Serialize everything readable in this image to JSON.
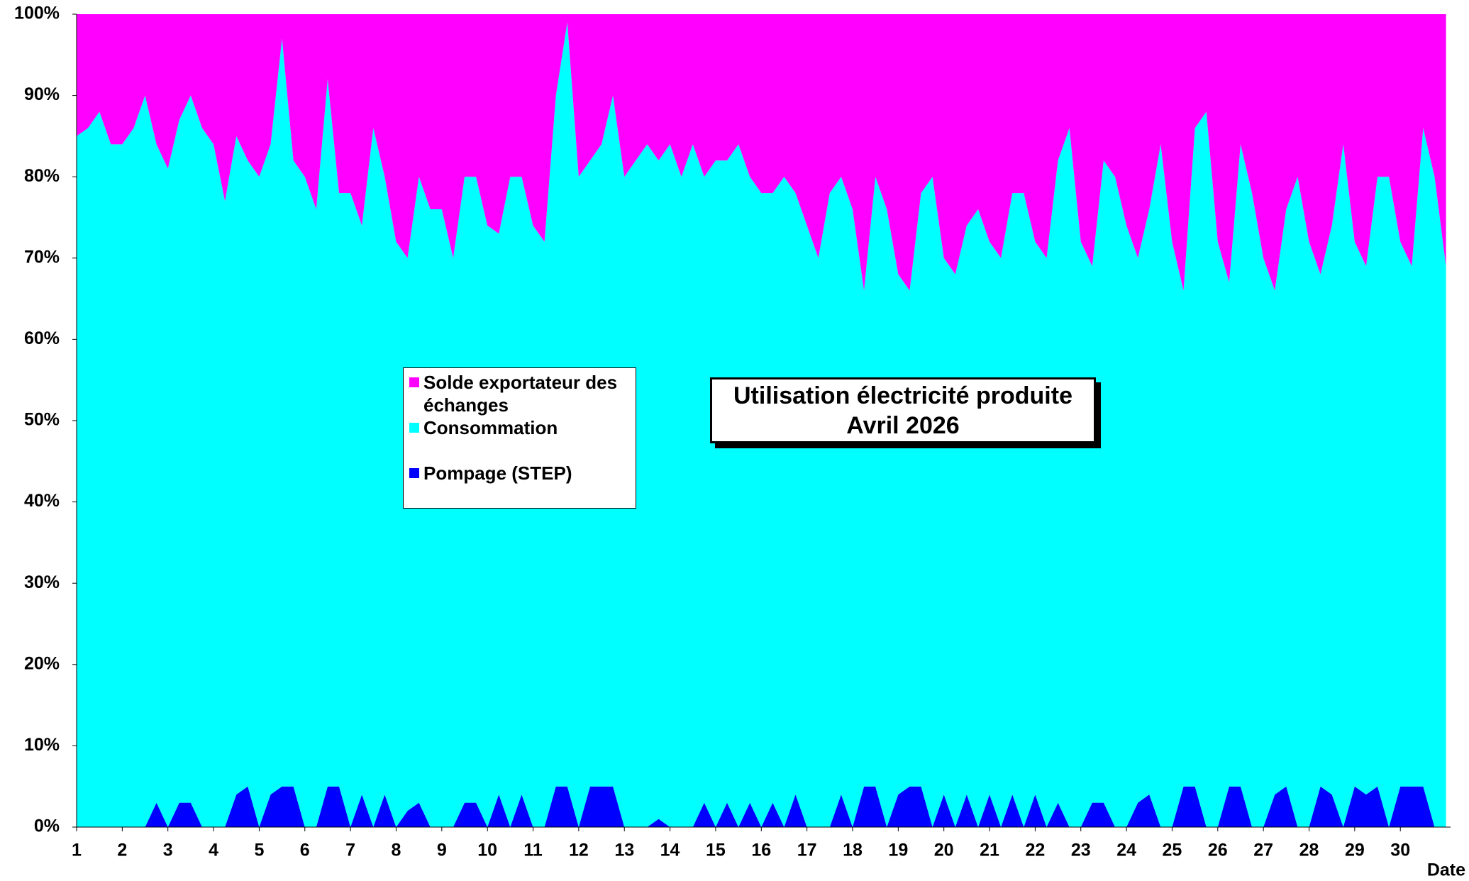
{
  "chart_data": {
    "type": "stacked-area",
    "title": "Utilisation électricité produite",
    "subtitle": "Avril 2026",
    "xlabel": "Date",
    "x": [
      1,
      1.25,
      1.5,
      1.75,
      2,
      2.25,
      2.5,
      2.75,
      3,
      3.25,
      3.5,
      3.75,
      4,
      4.25,
      4.5,
      4.75,
      5,
      5.25,
      5.5,
      5.75,
      6,
      6.25,
      6.5,
      6.75,
      7,
      7.25,
      7.5,
      7.75,
      8,
      8.25,
      8.5,
      8.75,
      9,
      9.25,
      9.5,
      9.75,
      10,
      10.25,
      10.5,
      10.75,
      11,
      11.25,
      11.5,
      11.75,
      12,
      12.25,
      12.5,
      12.75,
      13,
      13.25,
      13.5,
      13.75,
      14,
      14.25,
      14.5,
      14.75,
      15,
      15.25,
      15.5,
      15.75,
      16,
      16.25,
      16.5,
      16.75,
      17,
      17.25,
      17.5,
      17.75,
      18,
      18.25,
      18.5,
      18.75,
      19,
      19.25,
      19.5,
      19.75,
      20,
      20.25,
      20.5,
      20.75,
      21,
      21.25,
      21.5,
      21.75,
      22,
      22.25,
      22.5,
      22.75,
      23,
      23.25,
      23.5,
      23.75,
      24,
      24.25,
      24.5,
      24.75,
      25,
      25.25,
      25.5,
      25.75,
      26,
      26.25,
      26.5,
      26.75,
      27,
      27.25,
      27.5,
      27.75,
      28,
      28.25,
      28.5,
      28.75,
      29,
      29.25,
      29.5,
      29.75,
      30,
      30.25,
      30.5,
      30.75,
      31
    ],
    "series": [
      {
        "name": "Solde exportateur des échanges",
        "color": "#ff00ff",
        "values": [
          15,
          14,
          12,
          16,
          16,
          14,
          10,
          16,
          19,
          13,
          10,
          14,
          16,
          23,
          15,
          18,
          20,
          16,
          3,
          18,
          20,
          24,
          8,
          22,
          22,
          26,
          14,
          20,
          28,
          30,
          20,
          24,
          24,
          30,
          20,
          20,
          26,
          27,
          20,
          20,
          26,
          28,
          10,
          1,
          20,
          18,
          16,
          10,
          20,
          18,
          16,
          18,
          16,
          20,
          16,
          20,
          18,
          18,
          16,
          20,
          22,
          22,
          20,
          22,
          26,
          30,
          22,
          20,
          24,
          34,
          20,
          24,
          32,
          34,
          22,
          20,
          30,
          32,
          26,
          24,
          28,
          30,
          22,
          22,
          28,
          30,
          18,
          14,
          28,
          31,
          18,
          20,
          26,
          30,
          24,
          16,
          28,
          34,
          14,
          12,
          28,
          33,
          16,
          22,
          30,
          34,
          24,
          20,
          28,
          32,
          26,
          16,
          28,
          31,
          20,
          20,
          28,
          31,
          14,
          20,
          31
        ]
      },
      {
        "name": "Consommation",
        "color": "#00ffff",
        "values": [
          85,
          86,
          88,
          84,
          84,
          86,
          90,
          81,
          81,
          84,
          87,
          86,
          84,
          77,
          81,
          77,
          80,
          80,
          92,
          77,
          80,
          76,
          87,
          73,
          78,
          70,
          86,
          76,
          72,
          68,
          77,
          76,
          76,
          70,
          77,
          77,
          74,
          69,
          80,
          76,
          74,
          72,
          85,
          94,
          80,
          77,
          79,
          85,
          80,
          82,
          84,
          81,
          84,
          80,
          84,
          77,
          82,
          79,
          84,
          77,
          78,
          75,
          80,
          74,
          74,
          70,
          78,
          76,
          76,
          61,
          75,
          76,
          64,
          61,
          73,
          80,
          66,
          68,
          70,
          76,
          68,
          70,
          74,
          78,
          68,
          70,
          79,
          86,
          72,
          66,
          79,
          80,
          74,
          67,
          72,
          84,
          72,
          61,
          81,
          88,
          72,
          62,
          79,
          78,
          70,
          62,
          71,
          80,
          72,
          63,
          70,
          84,
          67,
          65,
          75,
          80,
          67,
          64,
          81,
          80,
          69
        ]
      },
      {
        "name": "Pompage (STEP)",
        "color": "#0000ff",
        "values": [
          0,
          0,
          0,
          0,
          0,
          0,
          0,
          3,
          0,
          3,
          3,
          0,
          0,
          0,
          4,
          5,
          0,
          4,
          5,
          5,
          0,
          0,
          5,
          5,
          0,
          4,
          0,
          4,
          0,
          2,
          3,
          0,
          0,
          0,
          3,
          3,
          0,
          4,
          0,
          4,
          0,
          0,
          5,
          5,
          0,
          5,
          5,
          5,
          0,
          0,
          0,
          1,
          0,
          0,
          0,
          3,
          0,
          3,
          0,
          3,
          0,
          3,
          0,
          4,
          0,
          0,
          0,
          4,
          0,
          5,
          5,
          0,
          4,
          5,
          5,
          0,
          4,
          0,
          4,
          0,
          4,
          0,
          4,
          0,
          4,
          0,
          3,
          0,
          0,
          3,
          3,
          0,
          0,
          3,
          4,
          0,
          0,
          5,
          5,
          0,
          0,
          5,
          5,
          0,
          0,
          4,
          5,
          0,
          0,
          5,
          4,
          0,
          5,
          4,
          5,
          0,
          5,
          5,
          5,
          0,
          0
        ]
      }
    ],
    "xlim": [
      1,
      31.1
    ],
    "xticks": [
      1,
      2,
      3,
      4,
      5,
      6,
      7,
      8,
      9,
      10,
      11,
      12,
      13,
      14,
      15,
      16,
      17,
      18,
      19,
      20,
      21,
      22,
      23,
      24,
      25,
      26,
      27,
      28,
      29,
      30
    ],
    "ylim": [
      0,
      100
    ],
    "yticks": [
      {
        "value": 0,
        "label": "0%"
      },
      {
        "value": 10,
        "label": "10%"
      },
      {
        "value": 20,
        "label": "20%"
      },
      {
        "value": 30,
        "label": "30%"
      },
      {
        "value": 40,
        "label": "40%"
      },
      {
        "value": 50,
        "label": "50%"
      },
      {
        "value": 60,
        "label": "60%"
      },
      {
        "value": 70,
        "label": "70%"
      },
      {
        "value": 80,
        "label": "80%"
      },
      {
        "value": 90,
        "label": "90%"
      },
      {
        "value": 100,
        "label": "100%"
      }
    ]
  }
}
